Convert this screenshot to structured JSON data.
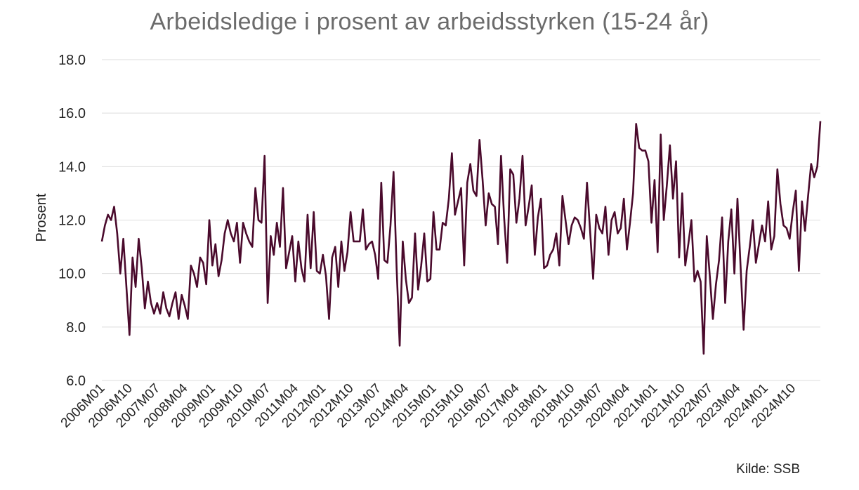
{
  "chart_data": {
    "type": "line",
    "title": "Arbeidsledige i prosent av arbeidsstyrken (15-24 år)",
    "xlabel": "",
    "ylabel": "Prosent",
    "source": "Kilde: SSB",
    "ylim": [
      6.0,
      18.0
    ],
    "yticks": [
      "6.0",
      "8.0",
      "10.0",
      "12.0",
      "14.0",
      "16.0",
      "18.0"
    ],
    "grid": true,
    "line_color": "#4a0a2c",
    "x_start": "2006M01",
    "x_end": "2025M03",
    "xtick_labels": [
      "2006M01",
      "2006M10",
      "2007M07",
      "2008M04",
      "2009M01",
      "2009M10",
      "2010M07",
      "2011M04",
      "2012M01",
      "2012M10",
      "2013M07",
      "2014M04",
      "2015M01",
      "2015M10",
      "2016M07",
      "2017M04",
      "2018M01",
      "2018M10",
      "2019M07",
      "2020M04",
      "2021M01",
      "2021M10",
      "2022M07",
      "2023M04",
      "2024M01",
      "2024M10"
    ],
    "series": [
      {
        "values": [
          11.2,
          11.8,
          12.2,
          12.0,
          12.5,
          11.5,
          10.0,
          11.3,
          9.5,
          7.7,
          10.6,
          9.5,
          11.3,
          10.2,
          8.7,
          9.7,
          8.9,
          8.5,
          8.9,
          8.5,
          9.3,
          8.7,
          8.4,
          8.9,
          9.3,
          8.3,
          9.2,
          8.8,
          8.3,
          10.3,
          10.0,
          9.5,
          10.6,
          10.4,
          9.6,
          12.0,
          10.3,
          11.1,
          9.9,
          10.5,
          11.5,
          12.0,
          11.5,
          11.2,
          11.9,
          10.4,
          11.9,
          11.5,
          11.2,
          11.0,
          13.2,
          12.0,
          11.9,
          14.4,
          8.9,
          11.4,
          10.7,
          11.9,
          11.0,
          13.2,
          10.2,
          10.8,
          11.4,
          9.7,
          11.2,
          10.2,
          9.7,
          12.2,
          10.2,
          12.3,
          10.1,
          10.0,
          10.7,
          9.9,
          8.3,
          10.6,
          11.0,
          9.5,
          11.2,
          10.1,
          10.8,
          12.3,
          11.2,
          11.2,
          11.2,
          12.4,
          10.9,
          11.1,
          11.2,
          10.7,
          9.8,
          13.4,
          10.5,
          10.4,
          11.8,
          13.8,
          10.2,
          7.3,
          11.2,
          9.8,
          8.9,
          9.1,
          11.5,
          9.4,
          10.3,
          11.5,
          9.7,
          9.8,
          12.3,
          10.9,
          10.9,
          11.9,
          11.8,
          12.8,
          14.5,
          12.2,
          12.7,
          13.2,
          10.3,
          13.4,
          14.1,
          13.1,
          12.9,
          15.0,
          13.5,
          11.8,
          13.0,
          12.6,
          12.5,
          11.1,
          14.4,
          12.1,
          10.4,
          13.9,
          13.7,
          11.9,
          12.8,
          14.4,
          11.8,
          12.5,
          13.3,
          10.7,
          12.1,
          12.8,
          10.2,
          10.3,
          10.7,
          10.9,
          11.5,
          10.3,
          12.9,
          12.0,
          11.1,
          11.8,
          12.1,
          12.0,
          11.7,
          11.3,
          13.4,
          11.6,
          9.8,
          12.2,
          11.7,
          11.5,
          12.5,
          10.7,
          12.0,
          12.3,
          11.5,
          11.7,
          12.8,
          10.9,
          11.9,
          13.0,
          15.6,
          14.7,
          14.6,
          14.6,
          14.2,
          11.9,
          13.5,
          10.8,
          15.2,
          12.0,
          13.3,
          14.8,
          12.8,
          14.2,
          10.6,
          13.0,
          10.3,
          11.1,
          12.0,
          9.7,
          10.1,
          9.7,
          7.0,
          11.4,
          9.9,
          8.3,
          9.6,
          10.5,
          12.1,
          8.9,
          11.2,
          12.4,
          10.0,
          12.8,
          10.3,
          7.9,
          10.1,
          11.0,
          12.0,
          10.4,
          11.1,
          11.8,
          11.2,
          12.7,
          10.9,
          11.4,
          13.9,
          12.6,
          11.8,
          11.7,
          11.3,
          12.3,
          13.1,
          10.1,
          12.7,
          11.6,
          12.9,
          14.1,
          13.6,
          14.0,
          15.7
        ]
      }
    ]
  }
}
